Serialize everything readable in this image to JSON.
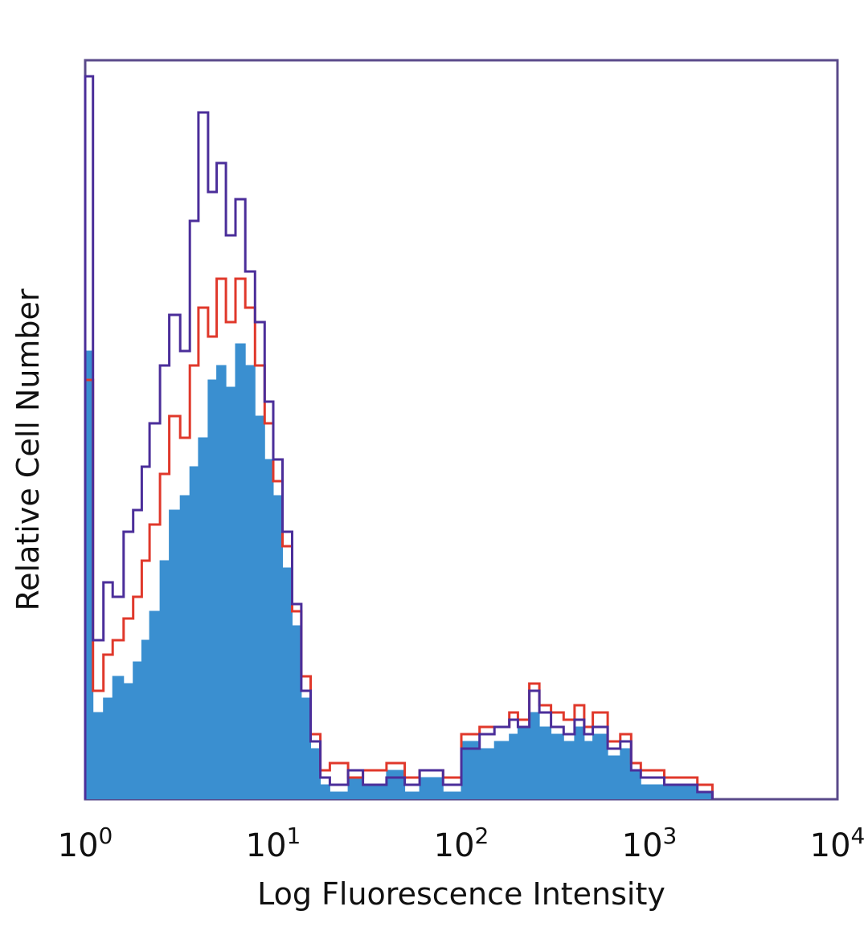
{
  "chart_data": {
    "type": "histogram",
    "xscale": "log",
    "xlim": [
      1,
      10000
    ],
    "ylim": [
      0,
      100
    ],
    "grid": false,
    "legend": "none",
    "xlabel": "Log Fluorescence Intensity",
    "ylabel": "Relative Cell Number",
    "x_ticks": [
      {
        "base": "10",
        "exp": "0",
        "value": 1
      },
      {
        "base": "10",
        "exp": "1",
        "value": 10
      },
      {
        "base": "10",
        "exp": "2",
        "value": 100
      },
      {
        "base": "10",
        "exp": "3",
        "value": 1000
      },
      {
        "base": "10",
        "exp": "4",
        "value": 10000
      }
    ],
    "colors": {
      "filled": "#3a8fd0",
      "red_outline": "#e0382b",
      "purple_outline": "#4b2e9a",
      "frame": "#5a4a8a"
    },
    "series": [
      {
        "style": "filled",
        "color": "#3a8fd0",
        "x": [
          1.0,
          1.1,
          1.25,
          1.4,
          1.6,
          1.8,
          2.0,
          2.2,
          2.5,
          2.8,
          3.2,
          3.6,
          4.0,
          4.5,
          5.0,
          5.6,
          6.3,
          7.1,
          8.0,
          9.0,
          10.0,
          11.2,
          12.6,
          14.1,
          15.8,
          17.8,
          20,
          25,
          30,
          40,
          50,
          60,
          80,
          100,
          125,
          150,
          180,
          200,
          230,
          260,
          300,
          350,
          400,
          450,
          500,
          600,
          700,
          800,
          900,
          1000,
          1200,
          1500,
          1800,
          2000
        ],
        "y": [
          62,
          12,
          14,
          17,
          16,
          19,
          22,
          26,
          33,
          40,
          42,
          46,
          50,
          58,
          60,
          57,
          63,
          60,
          53,
          47,
          42,
          32,
          24,
          14,
          7,
          2,
          1,
          3,
          2,
          4,
          1,
          3,
          1,
          8,
          7,
          8,
          9,
          10,
          12,
          10,
          9,
          8,
          10,
          8,
          9,
          6,
          7,
          4,
          2,
          2,
          2,
          2,
          1,
          1
        ]
      },
      {
        "style": "outline",
        "color": "#e0382b",
        "x": [
          1.0,
          1.1,
          1.25,
          1.4,
          1.6,
          1.8,
          2.0,
          2.2,
          2.5,
          2.8,
          3.2,
          3.6,
          4.0,
          4.5,
          5.0,
          5.6,
          6.3,
          7.1,
          8.0,
          9.0,
          10.0,
          11.2,
          12.6,
          14.1,
          15.8,
          17.8,
          20,
          25,
          30,
          40,
          50,
          60,
          80,
          100,
          125,
          150,
          180,
          200,
          230,
          260,
          300,
          350,
          400,
          450,
          500,
          600,
          700,
          800,
          900,
          1000,
          1200,
          1500,
          1800,
          2000
        ],
        "y": [
          58,
          15,
          20,
          22,
          25,
          28,
          33,
          38,
          45,
          53,
          50,
          60,
          68,
          64,
          72,
          66,
          72,
          68,
          60,
          52,
          44,
          35,
          26,
          17,
          9,
          4,
          5,
          3,
          4,
          5,
          3,
          4,
          3,
          9,
          10,
          10,
          12,
          11,
          16,
          13,
          12,
          11,
          13,
          10,
          12,
          8,
          9,
          5,
          4,
          4,
          3,
          3,
          2,
          2
        ]
      },
      {
        "style": "outline",
        "color": "#4b2e9a",
        "x": [
          1.0,
          1.1,
          1.25,
          1.4,
          1.6,
          1.8,
          2.0,
          2.2,
          2.5,
          2.8,
          3.2,
          3.6,
          4.0,
          4.5,
          5.0,
          5.6,
          6.3,
          7.1,
          8.0,
          9.0,
          10.0,
          11.2,
          12.6,
          14.1,
          15.8,
          17.8,
          20,
          25,
          30,
          40,
          50,
          60,
          80,
          100,
          125,
          150,
          180,
          200,
          230,
          260,
          300,
          350,
          400,
          450,
          500,
          600,
          700,
          800,
          900,
          1000,
          1200,
          1500,
          1800,
          2000
        ],
        "y": [
          100,
          22,
          30,
          28,
          37,
          40,
          46,
          52,
          60,
          67,
          62,
          80,
          95,
          84,
          88,
          78,
          83,
          73,
          66,
          55,
          47,
          37,
          27,
          15,
          8,
          3,
          2,
          4,
          2,
          3,
          2,
          4,
          2,
          7,
          9,
          10,
          11,
          10,
          15,
          12,
          10,
          9,
          11,
          9,
          10,
          7,
          8,
          4,
          3,
          3,
          2,
          2,
          1,
          1
        ]
      }
    ]
  }
}
